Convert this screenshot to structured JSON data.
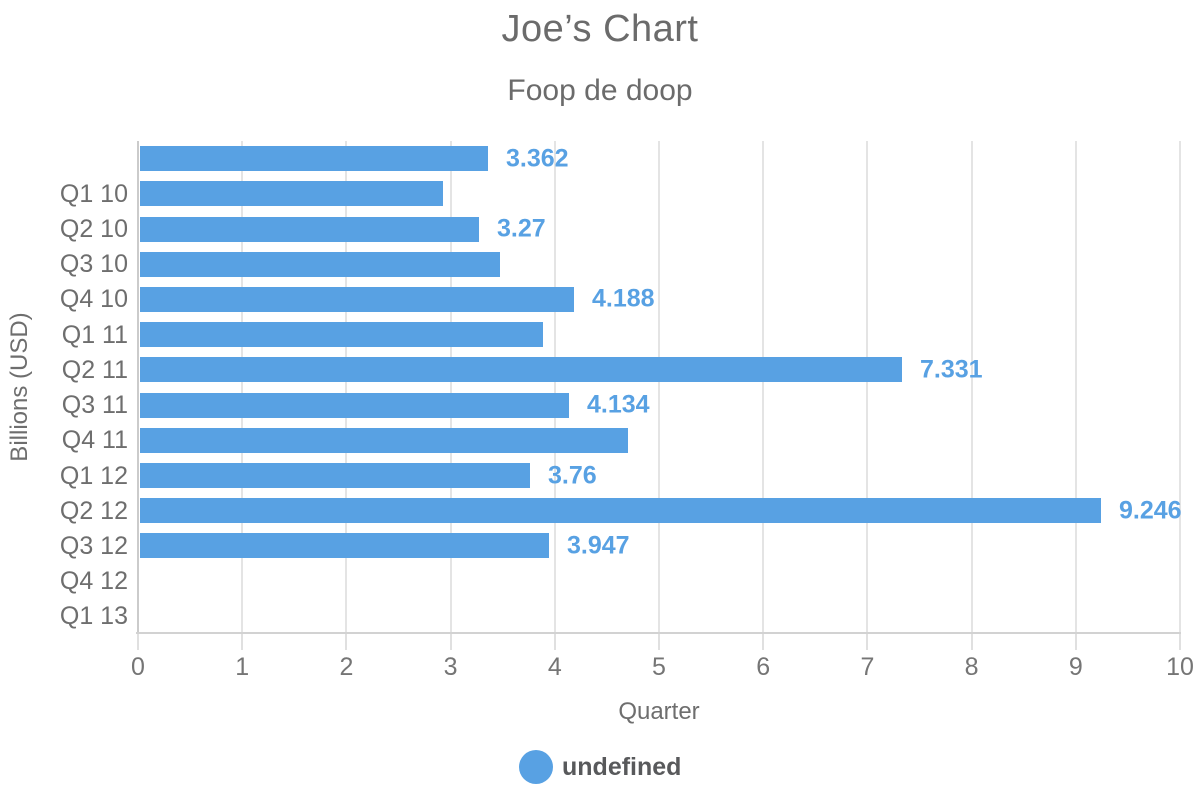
{
  "chart_data": {
    "type": "bar",
    "orientation": "horizontal",
    "title": "Joe’s Chart",
    "subtitle": "Foop de doop",
    "xlabel": "Quarter",
    "ylabel": "Billions (USD)",
    "xlim": [
      0,
      10
    ],
    "x_ticks": [
      "0",
      "1",
      "2",
      "3",
      "4",
      "5",
      "6",
      "7",
      "8",
      "9",
      "10"
    ],
    "grid": true,
    "categories": [
      "Q1 10",
      "Q2 10",
      "Q3 10",
      "Q4 10",
      "Q1 11",
      "Q2 11",
      "Q3 11",
      "Q4 11",
      "Q1 12",
      "Q2 12",
      "Q3 12",
      "Q4 12",
      "Q1 13"
    ],
    "series": [
      {
        "name": "undefined",
        "color": "#58a1e3",
        "points": [
          {
            "value": 3.362,
            "data_label": "3.362"
          },
          {
            "value": 2.93,
            "data_label": null
          },
          {
            "value": 3.27,
            "data_label": "3.27"
          },
          {
            "value": 3.47,
            "data_label": null
          },
          {
            "value": 4.188,
            "data_label": "4.188"
          },
          {
            "value": 3.89,
            "data_label": null
          },
          {
            "value": 7.331,
            "data_label": "7.331"
          },
          {
            "value": 4.134,
            "data_label": "4.134"
          },
          {
            "value": 4.7,
            "data_label": null
          },
          {
            "value": 3.76,
            "data_label": "3.76"
          },
          {
            "value": 9.246,
            "data_label": "9.246"
          },
          {
            "value": 3.947,
            "data_label": "3.947"
          }
        ]
      }
    ],
    "legend": {
      "position": "bottom",
      "items": [
        {
          "label": "undefined",
          "color": "#58a1e3"
        }
      ]
    },
    "layout_note": "bars are offset one half-row above their category labels; last two categories have no bars"
  },
  "colors": {
    "bar": "#58a1e3",
    "value_label": "#58a1e3",
    "grid": "#e4e4e4",
    "axis_line": "#cbcbcb",
    "title_text": "#6b6b6b",
    "axis_text": "#757575",
    "category_text": "#6e6e6e",
    "legend_text": "#58595b"
  }
}
